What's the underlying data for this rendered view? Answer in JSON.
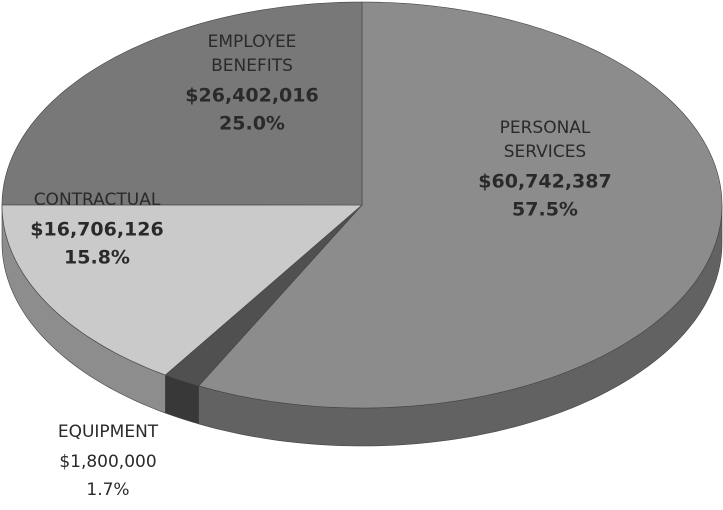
{
  "chart_data": {
    "type": "pie3d",
    "categories": [
      "PERSONAL SERVICES",
      "EQUIPMENT",
      "CONTRACTUAL",
      "EMPLOYEE BENEFITS"
    ],
    "values": [
      60742387,
      1800000,
      16706126,
      26402016
    ],
    "value_labels": [
      "$60,742,387",
      "$1,800,000",
      "$16,706,126",
      "$26,402,016"
    ],
    "percents": [
      57.5,
      1.7,
      15.8,
      25.0
    ],
    "percent_labels": [
      "57.5%",
      "1.7%",
      "15.8%",
      "25.0%"
    ],
    "colors": [
      "#8c8c8c",
      "#505050",
      "#cacaca",
      "#787878"
    ]
  }
}
